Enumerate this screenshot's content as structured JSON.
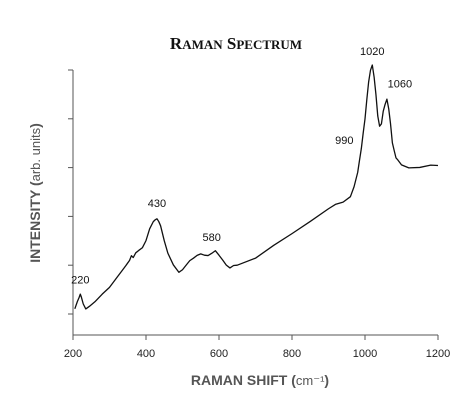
{
  "chart_data": {
    "type": "line",
    "title": "Raman Spectrum",
    "xlabel": "Raman shift (cm⁻¹)",
    "ylabel": "Intensity (arb. units)",
    "xlim": [
      200,
      1200
    ],
    "x_ticks": [
      200,
      400,
      600,
      800,
      1000,
      1200
    ],
    "ylim": [
      0,
      100
    ],
    "y_tick_count": 6,
    "grid": false,
    "legend": "none",
    "line_color": "#111111",
    "axis_color": "#555555",
    "series": [
      {
        "x": [
          205,
          212,
          217,
          220,
          223,
          228,
          235,
          245,
          260,
          280,
          300,
          320,
          335,
          345,
          355,
          360,
          365,
          372,
          380,
          390,
          400,
          410,
          420,
          425,
          430,
          435,
          440,
          450,
          460,
          475,
          490,
          500,
          510,
          520,
          530,
          540,
          550,
          560,
          570,
          580,
          590,
          600,
          610,
          620,
          630,
          640,
          650,
          700,
          750,
          800,
          850,
          900,
          920,
          940,
          960,
          970,
          980,
          985,
          990,
          995,
          1000,
          1005,
          1010,
          1015,
          1020,
          1025,
          1030,
          1035,
          1040,
          1045,
          1050,
          1055,
          1060,
          1065,
          1070,
          1075,
          1080,
          1085,
          1090,
          1100,
          1120,
          1150,
          1180,
          1200
        ],
        "y": [
          2,
          5,
          7,
          8,
          7,
          4,
          2,
          3,
          5,
          8,
          11,
          15,
          18,
          20,
          22,
          24,
          23,
          25,
          26,
          27,
          30,
          35,
          38,
          38.5,
          39,
          38,
          36,
          30,
          25,
          20,
          17,
          18,
          20,
          22,
          23,
          24,
          24.5,
          24,
          24,
          25,
          26,
          24,
          22,
          20,
          19,
          20,
          20,
          23,
          28,
          33,
          38,
          43,
          45,
          46,
          48,
          52,
          58,
          63,
          68,
          74,
          80,
          88,
          95,
          100,
          102,
          97,
          90,
          81,
          77,
          78,
          83,
          86,
          88,
          84,
          78,
          70,
          67,
          64,
          63,
          61,
          60,
          60,
          61,
          61
        ]
      }
    ],
    "annotations": [
      {
        "text": "220",
        "x": 220,
        "y": 8
      },
      {
        "text": "430",
        "x": 430,
        "y": 39
      },
      {
        "text": "580",
        "x": 580,
        "y": 25
      },
      {
        "text": "990",
        "x": 990,
        "y": 68
      },
      {
        "text": "1020",
        "x": 1020,
        "y": 102
      },
      {
        "text": "1060",
        "x": 1060,
        "y": 88
      }
    ]
  }
}
